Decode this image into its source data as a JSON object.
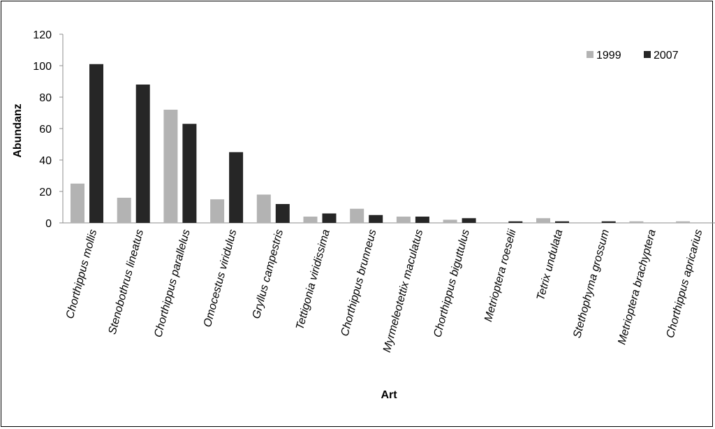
{
  "chart_data": {
    "type": "bar",
    "title": "",
    "xlabel": "Art",
    "ylabel": "Abundanz",
    "ylim": [
      0,
      120
    ],
    "yticks": [
      0,
      20,
      40,
      60,
      80,
      100,
      120
    ],
    "grid": false,
    "legend_position": "top-right",
    "categories": [
      "Chorthippus mollis",
      "Stenobothrus lineatus",
      "Chorthippus parallelus",
      "Omocestus viridulus",
      "Gryllus campestris",
      "Tettigonia viridissima",
      "Chorthippus brunneus",
      "Myrmeleotettix maculatus",
      "Chorthippus biguttulus",
      "Metrioptera roeselii",
      "Tetrix undulata",
      "Stethophyma grossum",
      "Metrioptera brachyptera",
      "Chorthippus apricarius"
    ],
    "series": [
      {
        "name": "1999",
        "color": "#b3b3b3",
        "values": [
          25,
          16,
          72,
          15,
          18,
          4,
          9,
          4,
          2,
          0,
          3,
          0,
          1,
          1
        ]
      },
      {
        "name": "2007",
        "color": "#262626",
        "values": [
          101,
          88,
          63,
          45,
          12,
          6,
          5,
          4,
          3,
          1,
          1,
          1,
          0,
          0
        ]
      }
    ]
  }
}
